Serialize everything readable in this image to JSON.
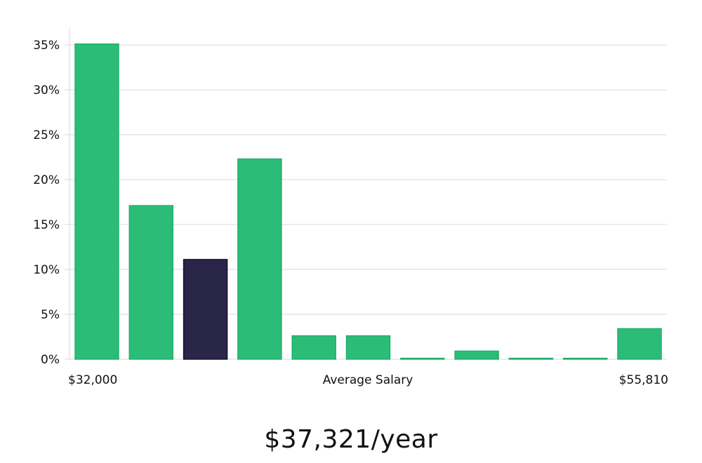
{
  "chart_data": {
    "type": "bar",
    "title": "",
    "xlabel": "Average Salary",
    "ylabel": "",
    "x_min_label": "$32,000",
    "x_max_label": "$55,810",
    "ylim": [
      0,
      36
    ],
    "yticks": [
      {
        "value": 0,
        "label": "0%"
      },
      {
        "value": 5,
        "label": "5%"
      },
      {
        "value": 10,
        "label": "10%"
      },
      {
        "value": 15,
        "label": "15%"
      },
      {
        "value": 20,
        "label": "20%"
      },
      {
        "value": 25,
        "label": "25%"
      },
      {
        "value": 30,
        "label": "30%"
      },
      {
        "value": 35,
        "label": "35%"
      }
    ],
    "values": [
      35.1,
      17.1,
      11.1,
      22.3,
      2.6,
      2.6,
      0.1,
      0.9,
      0.1,
      0.1,
      3.4
    ],
    "highlight_index": 2,
    "bar_color": "#2bbd77",
    "bar_stroke": "#21b06c",
    "highlight_color": "#29264a",
    "highlight_stroke": "#15132e"
  },
  "summary": {
    "salary_text": "$37,321/year"
  }
}
